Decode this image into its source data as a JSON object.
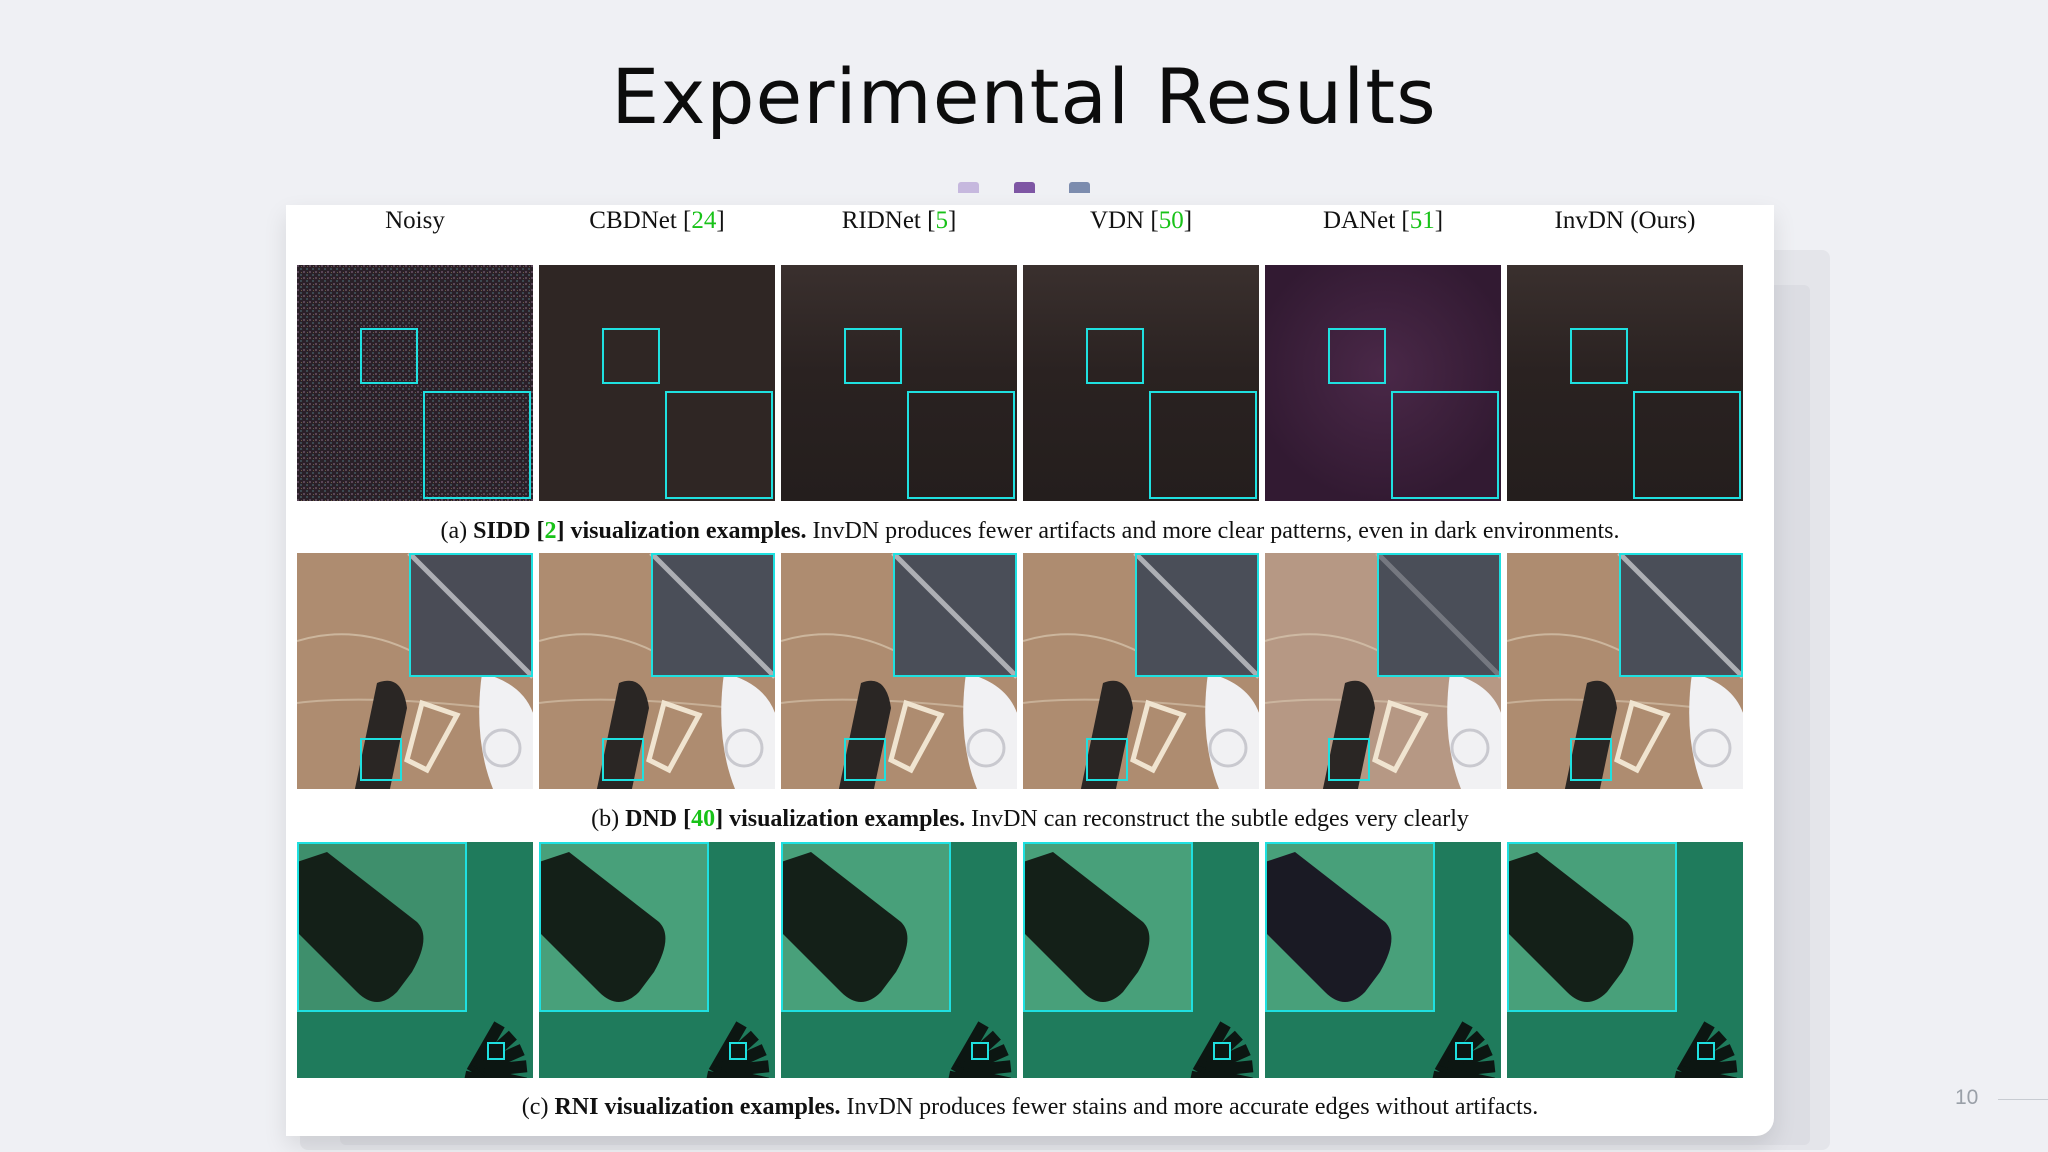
{
  "slide": {
    "title": "Experimental Results",
    "page_number": "10",
    "dot_colors": [
      "#c6b8de",
      "#7e56a4",
      "#7c8cae"
    ]
  },
  "figure": {
    "columns": [
      {
        "name": "Noisy",
        "ref": ""
      },
      {
        "name": "CBDNet [",
        "ref": "24"
      },
      {
        "name": "RIDNet [",
        "ref": "5"
      },
      {
        "name": "VDN [",
        "ref": "50"
      },
      {
        "name": "DANet [",
        "ref": "51"
      },
      {
        "name": "InvDN (Ours)",
        "ref": ""
      }
    ],
    "captions": {
      "a": {
        "prefix": "(a) ",
        "bold1": "SIDD [",
        "ref": "2",
        "bold2": "] visualization examples.",
        "rest": " InvDN produces fewer artifacts and more clear patterns, even in dark environments."
      },
      "b": {
        "prefix": "(b) ",
        "bold1": "DND [",
        "ref": "40",
        "bold2": "] visualization examples.",
        "rest": " InvDN can reconstruct the subtle edges very clearly"
      },
      "c": {
        "prefix": "(c) ",
        "bold1": "RNI visualization examples.",
        "ref": "",
        "bold2": "",
        "rest": " InvDN produces fewer stains and more accurate edges without artifacts."
      }
    },
    "colors": {
      "highlight_box": "#1fe0e0",
      "citation": "#18c218"
    }
  }
}
